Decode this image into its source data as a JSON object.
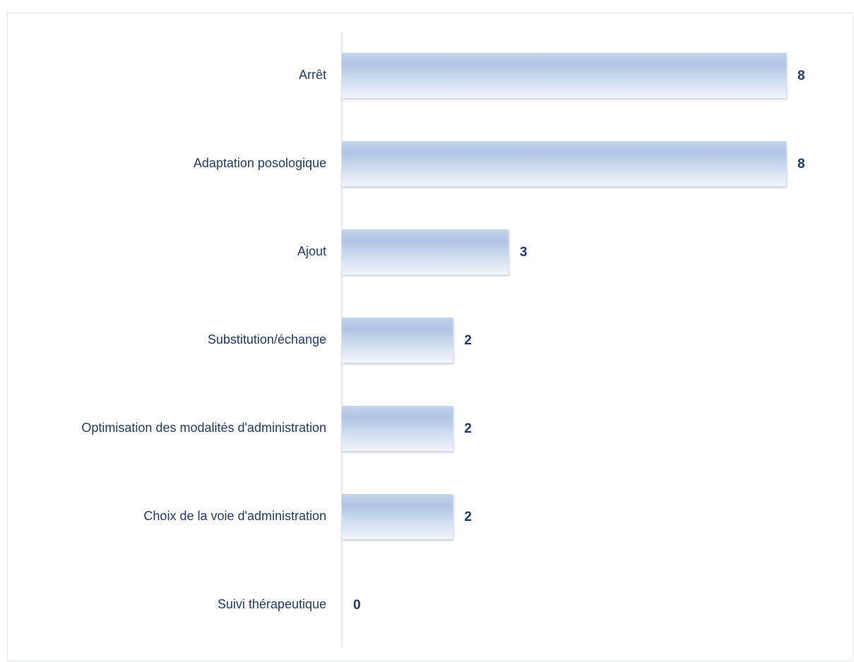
{
  "chart_data": {
    "type": "bar",
    "orientation": "horizontal",
    "categories": [
      "Arrêt",
      "Adaptation posologique",
      "Ajout",
      "Substitution/échange",
      "Optimisation des modalités d'administration",
      "Choix de la voie d'administration",
      "Suivi thérapeutique"
    ],
    "values": [
      8,
      8,
      3,
      2,
      2,
      2,
      0
    ],
    "color": "#aec4e3",
    "xlim": [
      0,
      8
    ]
  }
}
